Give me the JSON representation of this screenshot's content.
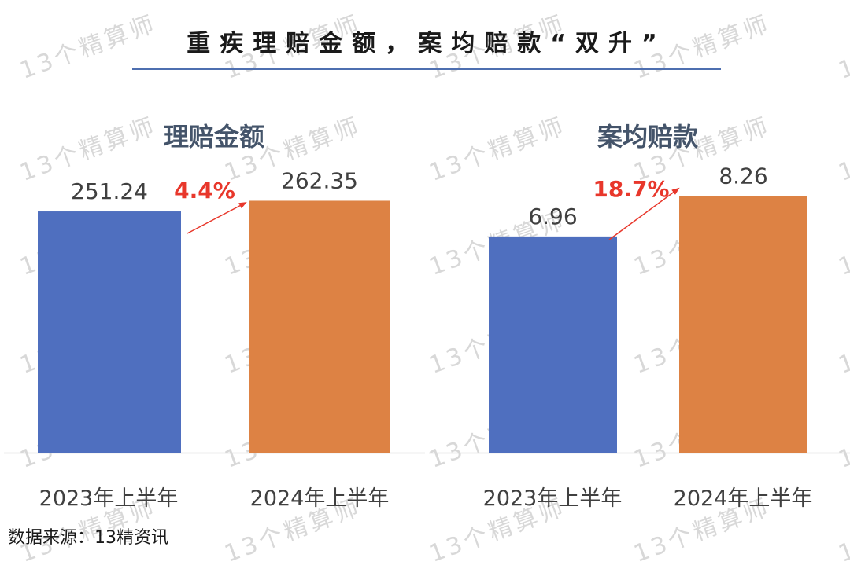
{
  "main_title": "重疾理赔金额，案均赔款“双升”",
  "source_note": "数据来源：13精资讯",
  "watermark_text": "13个精算师",
  "colors": {
    "blue": "#4f6fbf",
    "orange": "#dd8244",
    "growth": "#e8372b",
    "axis": "#d9d9d9",
    "text": "#404040",
    "title_rule": "#4e6fb0"
  },
  "chart_data": [
    {
      "type": "bar",
      "title": "理赔金额",
      "categories": [
        "2023年上半年",
        "2024年上半年"
      ],
      "values": [
        251.24,
        262.35
      ],
      "value_labels": [
        "251.24",
        "262.35"
      ],
      "growth_label": "4.4%",
      "ylim": [
        0,
        275
      ]
    },
    {
      "type": "bar",
      "title": "案均赔款",
      "categories": [
        "2023年上半年",
        "2024年上半年"
      ],
      "values": [
        6.96,
        8.26
      ],
      "value_labels": [
        "6.96",
        "8.26"
      ],
      "growth_label": "18.7%",
      "ylim": [
        0,
        8.5
      ]
    }
  ]
}
